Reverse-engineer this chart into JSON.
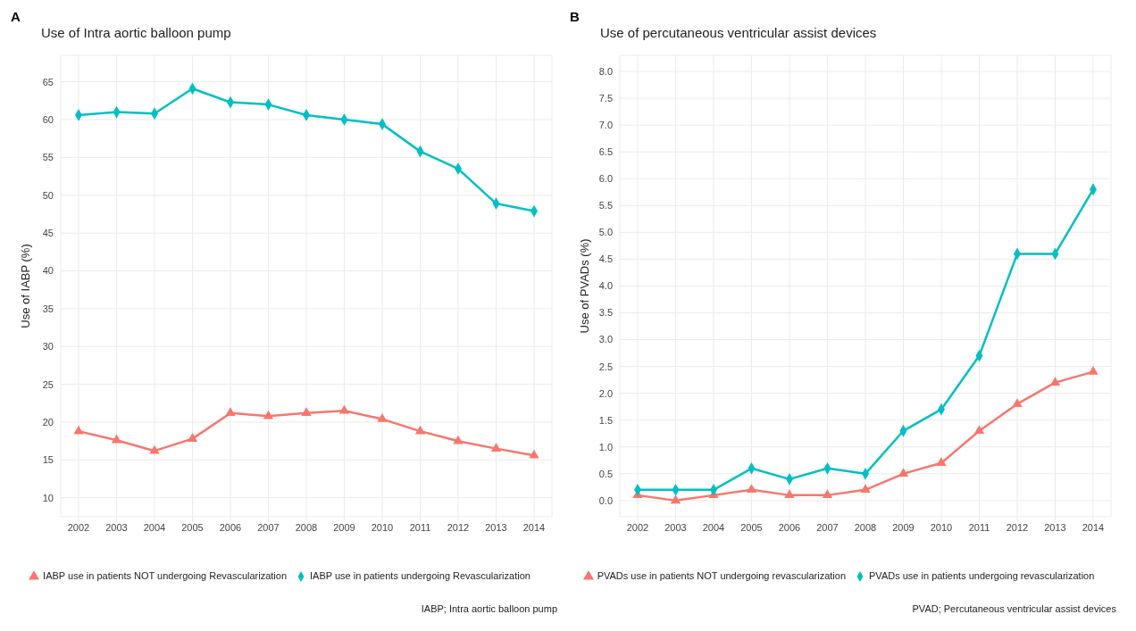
{
  "chart_data": [
    {
      "type": "line",
      "title": "Use of Intra aortic balloon pump",
      "ylabel": "Use of IABP (%)",
      "annotations": [
        "A",
        "IABP; Intra aortic balloon pump"
      ],
      "categories": [
        "2002",
        "2003",
        "2004",
        "2005",
        "2006",
        "2007",
        "2008",
        "2009",
        "2010",
        "2011",
        "2012",
        "2013",
        "2014"
      ],
      "series": [
        {
          "name": "IABP use in patients NOT undergoing Revascularization",
          "color": "#f8766d",
          "marker": "triangle",
          "values": [
            18.8,
            17.6,
            16.2,
            17.8,
            21.2,
            20.8,
            21.2,
            21.5,
            20.4,
            18.8,
            17.5,
            16.5,
            15.6
          ]
        },
        {
          "name": "IABP use in patients undergoing Revascularization",
          "color": "#00bfc4",
          "marker": "diamond",
          "values": [
            60.6,
            61.0,
            60.8,
            64.1,
            62.3,
            62.0,
            60.6,
            60.0,
            59.4,
            55.8,
            53.5,
            48.9,
            47.9
          ]
        }
      ],
      "ylim": [
        7.5,
        68.5
      ],
      "yticks": [
        10,
        15,
        20,
        25,
        30,
        35,
        40,
        45,
        50,
        55,
        60,
        65
      ],
      "grid": true,
      "legend": "bottom",
      "line_style": "solid"
    },
    {
      "type": "line",
      "title": "Use of percutaneous ventricular assist devices",
      "ylabel": "Use of PVADs (%)",
      "annotations": [
        "B",
        "PVAD; Percutaneous ventricular assist devices"
      ],
      "categories": [
        "2002",
        "2003",
        "2004",
        "2005",
        "2006",
        "2007",
        "2008",
        "2009",
        "2010",
        "2011",
        "2012",
        "2013",
        "2014"
      ],
      "series": [
        {
          "name": "PVADs use in patients NOT undergoing revascularization",
          "color": "#f8766d",
          "marker": "triangle",
          "values": [
            0.1,
            0.0,
            0.1,
            0.2,
            0.1,
            0.1,
            0.2,
            0.5,
            0.7,
            1.3,
            1.8,
            2.2,
            2.4
          ]
        },
        {
          "name": "PVADs use in patients undergoing revascularization",
          "color": "#00bfc4",
          "marker": "diamond",
          "values": [
            0.2,
            0.2,
            0.2,
            0.6,
            0.4,
            0.6,
            0.5,
            1.3,
            1.7,
            2.7,
            4.6,
            4.6,
            5.8
          ]
        }
      ],
      "ylim": [
        -0.3,
        8.3
      ],
      "yticks": [
        {
          "value": 0,
          "label": "0.0"
        },
        {
          "value": 0.5,
          "label": "0.5"
        },
        {
          "value": 1,
          "label": "1.0"
        },
        {
          "value": 1.5,
          "label": "1.5"
        },
        {
          "value": 2,
          "label": "2.0"
        },
        {
          "value": 2.5,
          "label": "2.5"
        },
        {
          "value": 3,
          "label": "3.0"
        },
        {
          "value": 3.5,
          "label": "3.5"
        },
        {
          "value": 4,
          "label": "4.0"
        },
        {
          "value": 4.5,
          "label": "4.5"
        },
        {
          "value": 5,
          "label": "5.0"
        },
        {
          "value": 5.5,
          "label": "5.5"
        },
        {
          "value": 6,
          "label": "6.0"
        },
        {
          "value": 6.5,
          "label": "6.5"
        },
        {
          "value": 7,
          "label": "7.0"
        },
        {
          "value": 7.5,
          "label": "7.5"
        },
        {
          "value": 8,
          "label": "8.0"
        }
      ],
      "grid": true,
      "legend": "bottom",
      "line_style": "solid"
    }
  ]
}
